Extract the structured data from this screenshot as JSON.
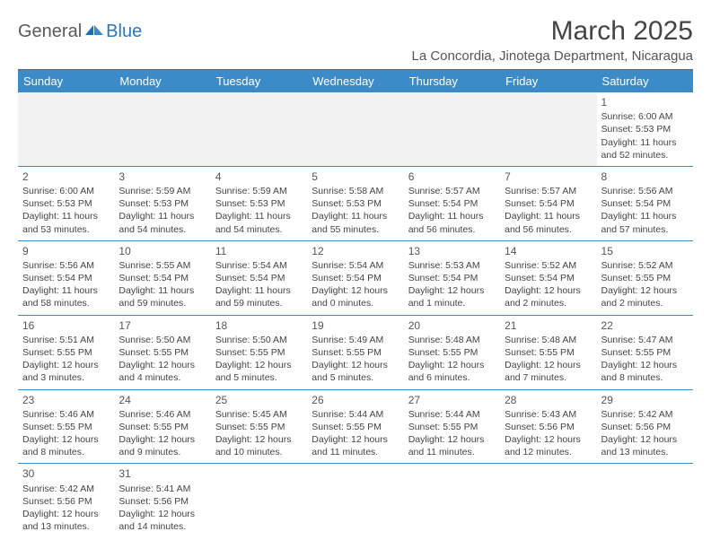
{
  "logo": {
    "part1": "General",
    "part2": "Blue"
  },
  "title": "March 2025",
  "location": "La Concordia, Jinotega Department, Nicaragua",
  "colors": {
    "header_bg": "#3b8bc9",
    "header_text": "#ffffff",
    "blank_bg": "#f2f2f2",
    "border": "#3b8bc9",
    "logo_gray": "#5a5a5a",
    "logo_blue": "#2a78bb"
  },
  "weekdays": [
    "Sunday",
    "Monday",
    "Tuesday",
    "Wednesday",
    "Thursday",
    "Friday",
    "Saturday"
  ],
  "weeks": [
    [
      null,
      null,
      null,
      null,
      null,
      null,
      {
        "day": "1",
        "sunrise": "Sunrise: 6:00 AM",
        "sunset": "Sunset: 5:53 PM",
        "daylight1": "Daylight: 11 hours",
        "daylight2": "and 52 minutes."
      }
    ],
    [
      {
        "day": "2",
        "sunrise": "Sunrise: 6:00 AM",
        "sunset": "Sunset: 5:53 PM",
        "daylight1": "Daylight: 11 hours",
        "daylight2": "and 53 minutes."
      },
      {
        "day": "3",
        "sunrise": "Sunrise: 5:59 AM",
        "sunset": "Sunset: 5:53 PM",
        "daylight1": "Daylight: 11 hours",
        "daylight2": "and 54 minutes."
      },
      {
        "day": "4",
        "sunrise": "Sunrise: 5:59 AM",
        "sunset": "Sunset: 5:53 PM",
        "daylight1": "Daylight: 11 hours",
        "daylight2": "and 54 minutes."
      },
      {
        "day": "5",
        "sunrise": "Sunrise: 5:58 AM",
        "sunset": "Sunset: 5:53 PM",
        "daylight1": "Daylight: 11 hours",
        "daylight2": "and 55 minutes."
      },
      {
        "day": "6",
        "sunrise": "Sunrise: 5:57 AM",
        "sunset": "Sunset: 5:54 PM",
        "daylight1": "Daylight: 11 hours",
        "daylight2": "and 56 minutes."
      },
      {
        "day": "7",
        "sunrise": "Sunrise: 5:57 AM",
        "sunset": "Sunset: 5:54 PM",
        "daylight1": "Daylight: 11 hours",
        "daylight2": "and 56 minutes."
      },
      {
        "day": "8",
        "sunrise": "Sunrise: 5:56 AM",
        "sunset": "Sunset: 5:54 PM",
        "daylight1": "Daylight: 11 hours",
        "daylight2": "and 57 minutes."
      }
    ],
    [
      {
        "day": "9",
        "sunrise": "Sunrise: 5:56 AM",
        "sunset": "Sunset: 5:54 PM",
        "daylight1": "Daylight: 11 hours",
        "daylight2": "and 58 minutes."
      },
      {
        "day": "10",
        "sunrise": "Sunrise: 5:55 AM",
        "sunset": "Sunset: 5:54 PM",
        "daylight1": "Daylight: 11 hours",
        "daylight2": "and 59 minutes."
      },
      {
        "day": "11",
        "sunrise": "Sunrise: 5:54 AM",
        "sunset": "Sunset: 5:54 PM",
        "daylight1": "Daylight: 11 hours",
        "daylight2": "and 59 minutes."
      },
      {
        "day": "12",
        "sunrise": "Sunrise: 5:54 AM",
        "sunset": "Sunset: 5:54 PM",
        "daylight1": "Daylight: 12 hours",
        "daylight2": "and 0 minutes."
      },
      {
        "day": "13",
        "sunrise": "Sunrise: 5:53 AM",
        "sunset": "Sunset: 5:54 PM",
        "daylight1": "Daylight: 12 hours",
        "daylight2": "and 1 minute."
      },
      {
        "day": "14",
        "sunrise": "Sunrise: 5:52 AM",
        "sunset": "Sunset: 5:54 PM",
        "daylight1": "Daylight: 12 hours",
        "daylight2": "and 2 minutes."
      },
      {
        "day": "15",
        "sunrise": "Sunrise: 5:52 AM",
        "sunset": "Sunset: 5:55 PM",
        "daylight1": "Daylight: 12 hours",
        "daylight2": "and 2 minutes."
      }
    ],
    [
      {
        "day": "16",
        "sunrise": "Sunrise: 5:51 AM",
        "sunset": "Sunset: 5:55 PM",
        "daylight1": "Daylight: 12 hours",
        "daylight2": "and 3 minutes."
      },
      {
        "day": "17",
        "sunrise": "Sunrise: 5:50 AM",
        "sunset": "Sunset: 5:55 PM",
        "daylight1": "Daylight: 12 hours",
        "daylight2": "and 4 minutes."
      },
      {
        "day": "18",
        "sunrise": "Sunrise: 5:50 AM",
        "sunset": "Sunset: 5:55 PM",
        "daylight1": "Daylight: 12 hours",
        "daylight2": "and 5 minutes."
      },
      {
        "day": "19",
        "sunrise": "Sunrise: 5:49 AM",
        "sunset": "Sunset: 5:55 PM",
        "daylight1": "Daylight: 12 hours",
        "daylight2": "and 5 minutes."
      },
      {
        "day": "20",
        "sunrise": "Sunrise: 5:48 AM",
        "sunset": "Sunset: 5:55 PM",
        "daylight1": "Daylight: 12 hours",
        "daylight2": "and 6 minutes."
      },
      {
        "day": "21",
        "sunrise": "Sunrise: 5:48 AM",
        "sunset": "Sunset: 5:55 PM",
        "daylight1": "Daylight: 12 hours",
        "daylight2": "and 7 minutes."
      },
      {
        "day": "22",
        "sunrise": "Sunrise: 5:47 AM",
        "sunset": "Sunset: 5:55 PM",
        "daylight1": "Daylight: 12 hours",
        "daylight2": "and 8 minutes."
      }
    ],
    [
      {
        "day": "23",
        "sunrise": "Sunrise: 5:46 AM",
        "sunset": "Sunset: 5:55 PM",
        "daylight1": "Daylight: 12 hours",
        "daylight2": "and 8 minutes."
      },
      {
        "day": "24",
        "sunrise": "Sunrise: 5:46 AM",
        "sunset": "Sunset: 5:55 PM",
        "daylight1": "Daylight: 12 hours",
        "daylight2": "and 9 minutes."
      },
      {
        "day": "25",
        "sunrise": "Sunrise: 5:45 AM",
        "sunset": "Sunset: 5:55 PM",
        "daylight1": "Daylight: 12 hours",
        "daylight2": "and 10 minutes."
      },
      {
        "day": "26",
        "sunrise": "Sunrise: 5:44 AM",
        "sunset": "Sunset: 5:55 PM",
        "daylight1": "Daylight: 12 hours",
        "daylight2": "and 11 minutes."
      },
      {
        "day": "27",
        "sunrise": "Sunrise: 5:44 AM",
        "sunset": "Sunset: 5:55 PM",
        "daylight1": "Daylight: 12 hours",
        "daylight2": "and 11 minutes."
      },
      {
        "day": "28",
        "sunrise": "Sunrise: 5:43 AM",
        "sunset": "Sunset: 5:56 PM",
        "daylight1": "Daylight: 12 hours",
        "daylight2": "and 12 minutes."
      },
      {
        "day": "29",
        "sunrise": "Sunrise: 5:42 AM",
        "sunset": "Sunset: 5:56 PM",
        "daylight1": "Daylight: 12 hours",
        "daylight2": "and 13 minutes."
      }
    ],
    [
      {
        "day": "30",
        "sunrise": "Sunrise: 5:42 AM",
        "sunset": "Sunset: 5:56 PM",
        "daylight1": "Daylight: 12 hours",
        "daylight2": "and 13 minutes."
      },
      {
        "day": "31",
        "sunrise": "Sunrise: 5:41 AM",
        "sunset": "Sunset: 5:56 PM",
        "daylight1": "Daylight: 12 hours",
        "daylight2": "and 14 minutes."
      },
      null,
      null,
      null,
      null,
      null
    ]
  ]
}
